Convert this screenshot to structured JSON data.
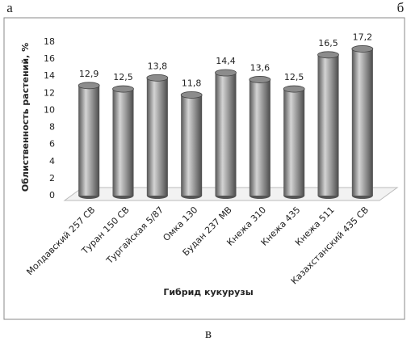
{
  "labels": {
    "left": "а",
    "right": "б",
    "bottom": "в"
  },
  "chart_data": {
    "type": "bar",
    "x_label": "Гибрид кукурузы",
    "y_label": "Облиственность растений, %",
    "categories": [
      "Молдавский 257 СВ",
      "Туран 150 СВ",
      "Тургайская 5/87",
      "Омка 130",
      "Будан 237 МВ",
      "Кнежа 310",
      "Кнежа 435",
      "Кнежа 511",
      "Казахстанский 435 СВ"
    ],
    "values": [
      12.9,
      12.5,
      13.8,
      11.8,
      14.4,
      13.6,
      12.5,
      16.5,
      17.2
    ],
    "value_labels": [
      "12,9",
      "12,5",
      "13,8",
      "11,8",
      "14,4",
      "13,6",
      "12,5",
      "16,5",
      "17,2"
    ],
    "color": "#8c8c8c",
    "ylim": [
      0,
      18
    ],
    "yticks": [
      0,
      2,
      4,
      6,
      8,
      10,
      12,
      14,
      16,
      18
    ],
    "grid": false
  }
}
